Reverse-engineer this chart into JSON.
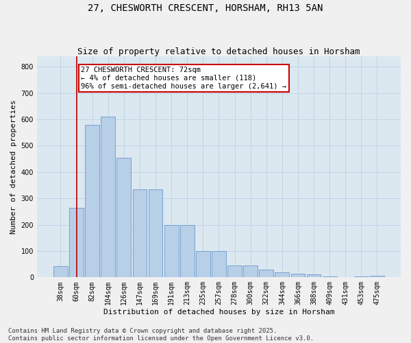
{
  "title": "27, CHESWORTH CRESCENT, HORSHAM, RH13 5AN",
  "subtitle": "Size of property relative to detached houses in Horsham",
  "xlabel": "Distribution of detached houses by size in Horsham",
  "ylabel": "Number of detached properties",
  "categories": [
    "38sqm",
    "60sqm",
    "82sqm",
    "104sqm",
    "126sqm",
    "147sqm",
    "169sqm",
    "191sqm",
    "213sqm",
    "235sqm",
    "257sqm",
    "278sqm",
    "300sqm",
    "322sqm",
    "344sqm",
    "366sqm",
    "388sqm",
    "409sqm",
    "431sqm",
    "453sqm",
    "475sqm"
  ],
  "values": [
    42,
    265,
    580,
    610,
    455,
    335,
    335,
    200,
    200,
    100,
    100,
    45,
    45,
    30,
    20,
    15,
    12,
    3,
    0,
    3,
    5
  ],
  "bar_color": "#b8cfe8",
  "bar_edge_color": "#6699cc",
  "grid_color": "#c0d4e8",
  "background_color": "#dce8f0",
  "fig_background_color": "#f0f0f0",
  "vline_x": 1,
  "vline_color": "#bb0000",
  "annotation_text": "27 CHESWORTH CRESCENT: 72sqm\n← 4% of detached houses are smaller (118)\n96% of semi-detached houses are larger (2,641) →",
  "annotation_box_color": "#ffffff",
  "annotation_box_edge": "#cc0000",
  "ylim": [
    0,
    840
  ],
  "yticks": [
    0,
    100,
    200,
    300,
    400,
    500,
    600,
    700,
    800
  ],
  "footer": "Contains HM Land Registry data © Crown copyright and database right 2025.\nContains public sector information licensed under the Open Government Licence v3.0.",
  "title_fontsize": 10,
  "subtitle_fontsize": 9,
  "axis_label_fontsize": 8,
  "tick_fontsize": 7,
  "annotation_fontsize": 7.5,
  "footer_fontsize": 6.5
}
